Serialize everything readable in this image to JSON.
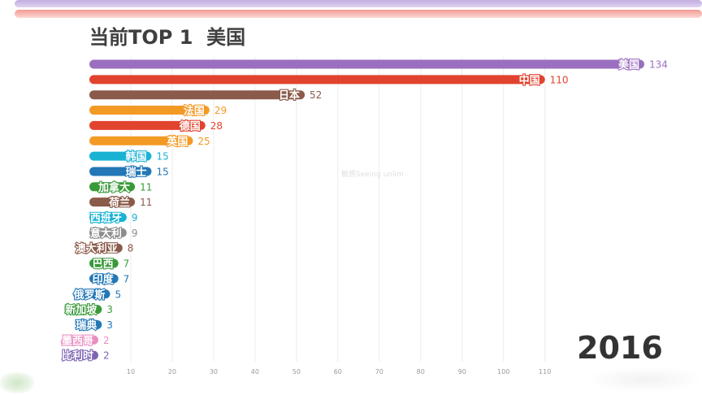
{
  "header": {
    "title_prefix": "当前TOP 1  ",
    "title_country": "美国"
  },
  "year": "2016",
  "watermark": "敏感Seeing unlim",
  "chart_data": {
    "type": "bar",
    "orientation": "horizontal",
    "title": "当前TOP 1  美国",
    "categories": [
      "美国",
      "中国",
      "日本",
      "法国",
      "德国",
      "英国",
      "韩国",
      "瑞士",
      "加拿大",
      "荷兰",
      "西班牙",
      "意大利",
      "澳大利亚",
      "巴西",
      "印度",
      "俄罗斯",
      "新加坡",
      "瑞典",
      "墨西哥",
      "比利时"
    ],
    "values": [
      134,
      110,
      52,
      29,
      28,
      25,
      15,
      15,
      11,
      11,
      9,
      9,
      8,
      7,
      7,
      5,
      3,
      3,
      2,
      2
    ],
    "colors": [
      "#9b6fc0",
      "#e2432f",
      "#8a5a4a",
      "#f39a25",
      "#e2432f",
      "#f39a25",
      "#1ab2d3",
      "#2377b6",
      "#3a9a3a",
      "#8a5a4a",
      "#1ab2d3",
      "#8d8d8d",
      "#8a5a4a",
      "#3a9a3a",
      "#2377b6",
      "#2377b6",
      "#3a9a3a",
      "#2377b6",
      "#ea8fc0",
      "#7d64b3"
    ],
    "xticks": [
      10,
      20,
      30,
      40,
      50,
      60,
      70,
      80,
      90,
      100,
      110
    ],
    "xlim": [
      0,
      134
    ],
    "xlabel": "",
    "ylabel": "",
    "grid": true,
    "legend": "none"
  }
}
